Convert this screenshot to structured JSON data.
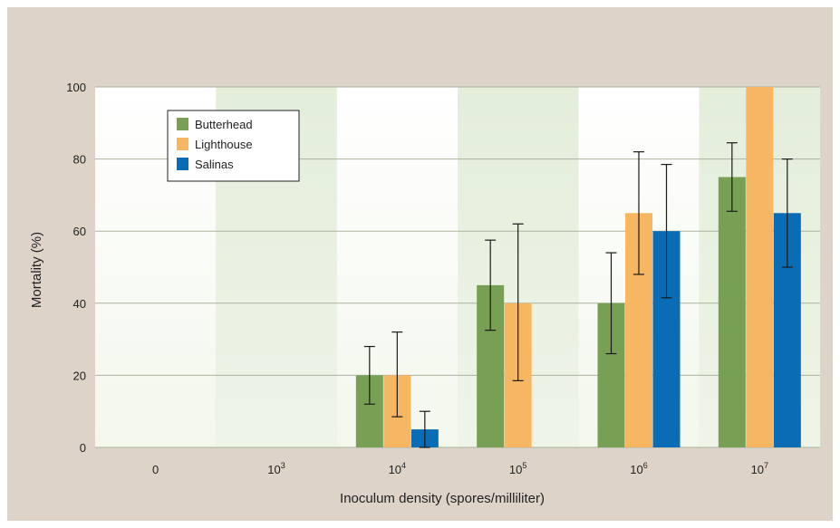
{
  "chart_data": {
    "type": "bar",
    "categories": [
      "0",
      "10",
      "10",
      "10",
      "10",
      "10"
    ],
    "category_exponents": [
      "",
      "3",
      "4",
      "5",
      "6",
      "7"
    ],
    "xlabel": "Inoculum density (spores/milliliter)",
    "ylabel": "Mortality (%)",
    "ylim": [
      0,
      100
    ],
    "yticks": [
      0,
      20,
      40,
      60,
      80,
      100
    ],
    "grid": true,
    "legend_position": "top-left",
    "series": [
      {
        "name": "Butterhead",
        "color": "#78a055",
        "values": [
          0,
          0,
          20,
          45,
          40,
          75
        ],
        "error_low": [
          null,
          null,
          12,
          32.5,
          26,
          65.5
        ],
        "error_high": [
          null,
          null,
          28,
          57.5,
          54,
          84.5
        ]
      },
      {
        "name": "Lighthouse",
        "color": "#f7b661",
        "values": [
          0,
          0,
          20,
          40,
          65,
          100
        ],
        "error_low": [
          null,
          null,
          8.5,
          18.5,
          48,
          null
        ],
        "error_high": [
          null,
          null,
          32,
          62,
          82,
          null
        ]
      },
      {
        "name": "Salinas",
        "color": "#0a6cb5",
        "values": [
          0,
          0,
          5,
          0,
          60,
          65
        ],
        "error_low": [
          null,
          null,
          0,
          null,
          41.5,
          50
        ],
        "error_high": [
          null,
          null,
          10,
          null,
          78.5,
          80
        ]
      }
    ]
  }
}
